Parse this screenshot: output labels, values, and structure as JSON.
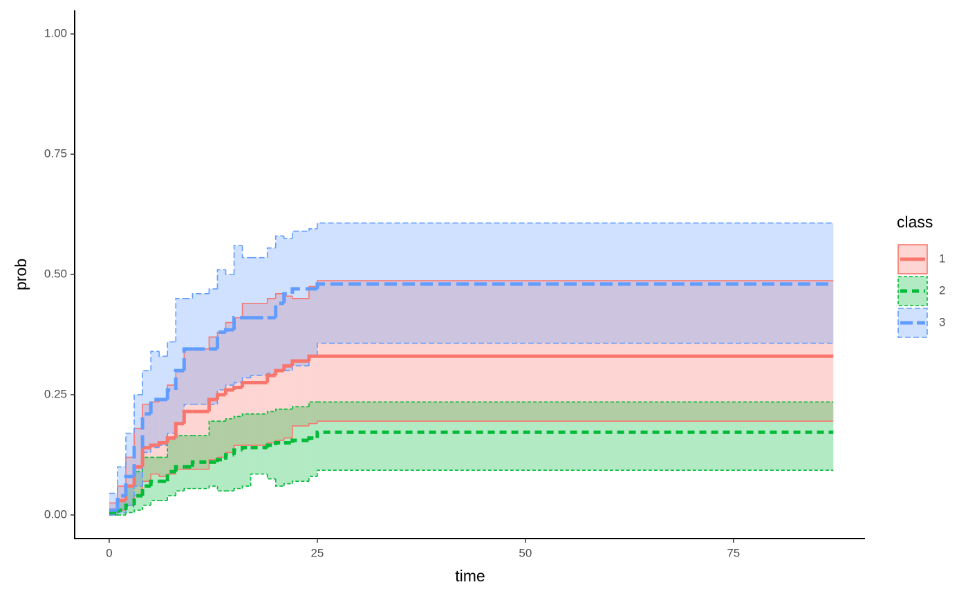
{
  "chart_data": {
    "type": "step-ribbon",
    "xlabel": "time",
    "ylabel": "prob",
    "xlim": [
      -4.15,
      90.8
    ],
    "ylim": [
      -0.049,
      1.049
    ],
    "xticks": [
      0,
      25,
      50,
      75
    ],
    "yticks": [
      {
        "value": 0,
        "label": "0.00"
      },
      {
        "value": 0.25,
        "label": "0.25"
      },
      {
        "value": 0.5,
        "label": "0.50"
      },
      {
        "value": 0.75,
        "label": "0.75"
      },
      {
        "value": 1,
        "label": "1.00"
      }
    ],
    "legend_title": "class",
    "series": [
      {
        "name": "1",
        "color": "#F8766D",
        "linetype": "solid",
        "x": [
          0,
          1,
          2,
          3,
          4,
          5,
          6,
          7,
          8,
          9,
          10,
          12,
          13,
          14,
          15,
          16,
          17,
          19,
          20,
          21,
          22,
          24,
          25,
          87
        ],
        "values": [
          0.01,
          0.03,
          0.06,
          0.1,
          0.14,
          0.145,
          0.15,
          0.16,
          0.19,
          0.215,
          0.215,
          0.24,
          0.25,
          0.26,
          0.265,
          0.275,
          0.275,
          0.29,
          0.3,
          0.31,
          0.32,
          0.33,
          0.33,
          0.33
        ],
        "lower": [
          0,
          0.01,
          0.02,
          0.04,
          0.07,
          0.085,
          0.08,
          0.085,
          0.095,
          0.095,
          0.095,
          0.115,
          0.12,
          0.13,
          0.145,
          0.145,
          0.145,
          0.15,
          0.155,
          0.16,
          0.185,
          0.19,
          0.195,
          0.195
        ],
        "upper": [
          0.025,
          0.06,
          0.12,
          0.18,
          0.23,
          0.235,
          0.24,
          0.27,
          0.3,
          0.345,
          0.345,
          0.37,
          0.38,
          0.4,
          0.41,
          0.44,
          0.44,
          0.45,
          0.46,
          0.455,
          0.45,
          0.475,
          0.487,
          0.487
        ]
      },
      {
        "name": "2",
        "color": "#00BA38",
        "linetype": "dashed",
        "x": [
          0,
          1,
          2,
          3,
          4,
          5,
          6,
          7,
          8,
          9,
          10,
          12,
          13,
          14,
          15,
          16,
          17,
          19,
          20,
          21,
          22,
          24,
          25,
          87
        ],
        "values": [
          0.005,
          0.01,
          0.02,
          0.04,
          0.06,
          0.07,
          0.07,
          0.09,
          0.1,
          0.1,
          0.11,
          0.11,
          0.115,
          0.125,
          0.135,
          0.14,
          0.14,
          0.145,
          0.15,
          0.15,
          0.155,
          0.16,
          0.172,
          0.172
        ],
        "lower": [
          0,
          0,
          0.005,
          0.01,
          0.02,
          0.03,
          0.03,
          0.04,
          0.05,
          0.055,
          0.055,
          0.06,
          0.05,
          0.05,
          0.055,
          0.06,
          0.085,
          0.075,
          0.06,
          0.065,
          0.07,
          0.08,
          0.093,
          0.093
        ],
        "upper": [
          0.01,
          0.03,
          0.06,
          0.09,
          0.12,
          0.12,
          0.12,
          0.16,
          0.165,
          0.165,
          0.165,
          0.195,
          0.195,
          0.2,
          0.205,
          0.21,
          0.21,
          0.215,
          0.22,
          0.22,
          0.225,
          0.235,
          0.235,
          0.235
        ]
      },
      {
        "name": "3",
        "color": "#619CFF",
        "linetype": "longdash",
        "x": [
          0,
          1,
          2,
          3,
          4,
          5,
          6,
          7,
          8,
          9,
          10,
          12,
          13,
          14,
          15,
          16,
          17,
          19,
          20,
          21,
          22,
          24,
          25,
          87
        ],
        "values": [
          0.01,
          0.04,
          0.08,
          0.14,
          0.21,
          0.24,
          0.24,
          0.26,
          0.3,
          0.345,
          0.345,
          0.345,
          0.38,
          0.385,
          0.41,
          0.41,
          0.41,
          0.41,
          0.44,
          0.46,
          0.47,
          0.47,
          0.48,
          0.48
        ],
        "lower": [
          0,
          0.005,
          0.02,
          0.06,
          0.13,
          0.14,
          0.145,
          0.17,
          0.19,
          0.23,
          0.23,
          0.23,
          0.26,
          0.27,
          0.275,
          0.285,
          0.29,
          0.295,
          0.3,
          0.3,
          0.31,
          0.33,
          0.357,
          0.357
        ],
        "upper": [
          0.045,
          0.1,
          0.17,
          0.25,
          0.3,
          0.34,
          0.33,
          0.36,
          0.45,
          0.45,
          0.46,
          0.47,
          0.51,
          0.5,
          0.56,
          0.535,
          0.535,
          0.555,
          0.58,
          0.575,
          0.59,
          0.595,
          0.607,
          0.607
        ]
      }
    ]
  }
}
